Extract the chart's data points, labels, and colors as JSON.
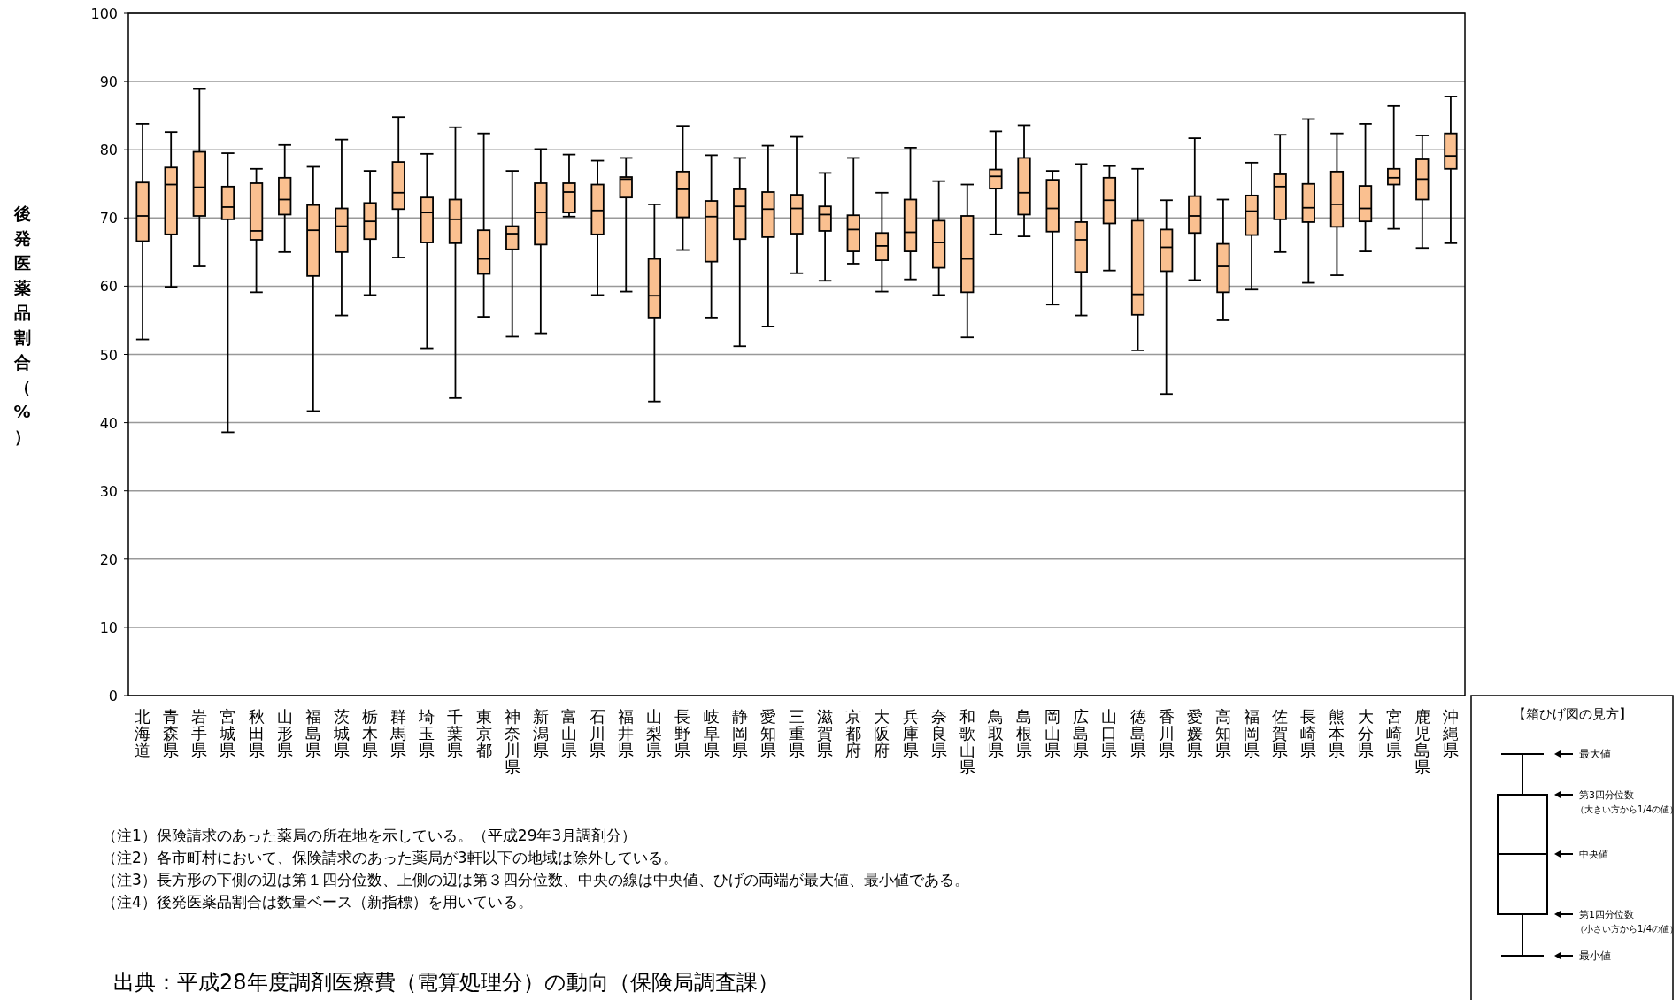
{
  "chart_data": [
    {
      "type": "box",
      "ylabel": "後発医薬品割合（%）",
      "categories": [
        "北海道",
        "青森県",
        "岩手県",
        "宮城県",
        "秋田県",
        "山形県",
        "福島県",
        "茨城県",
        "栃木県",
        "群馬県",
        "埼玉県",
        "千葉県",
        "東京都",
        "神奈川県",
        "新潟県",
        "富山県",
        "石川県",
        "福井県",
        "山梨県",
        "長野県",
        "岐阜県",
        "静岡県",
        "愛知県",
        "三重県",
        "滋賀県",
        "京都府",
        "大阪府",
        "兵庫県",
        "奈良県",
        "和歌山県",
        "鳥取県",
        "島根県",
        "岡山県",
        "広島県",
        "山口県",
        "徳島県",
        "香川県",
        "愛媛県",
        "高知県",
        "福岡県",
        "佐賀県",
        "長崎県",
        "熊本県",
        "大分県",
        "宮崎県",
        "鹿児島県",
        "沖縄県"
      ],
      "boxes": [
        {
          "low": 52.2,
          "q1": 66.6,
          "median": 70.3,
          "q3": 75.2,
          "high": 83.8
        },
        {
          "low": 59.9,
          "q1": 67.6,
          "median": 74.9,
          "q3": 77.4,
          "high": 82.6
        },
        {
          "low": 62.9,
          "q1": 70.3,
          "median": 74.5,
          "q3": 79.7,
          "high": 88.9
        },
        {
          "low": 38.6,
          "q1": 69.8,
          "median": 71.6,
          "q3": 74.6,
          "high": 79.5
        },
        {
          "low": 59.1,
          "q1": 66.8,
          "median": 68.1,
          "q3": 75.1,
          "high": 77.2
        },
        {
          "low": 65.0,
          "q1": 70.5,
          "median": 72.7,
          "q3": 75.9,
          "high": 80.7
        },
        {
          "low": 41.7,
          "q1": 61.5,
          "median": 68.2,
          "q3": 71.9,
          "high": 77.5
        },
        {
          "low": 55.7,
          "q1": 65.0,
          "median": 68.8,
          "q3": 71.4,
          "high": 81.5
        },
        {
          "low": 58.7,
          "q1": 66.9,
          "median": 69.5,
          "q3": 72.2,
          "high": 76.9
        },
        {
          "low": 64.2,
          "q1": 71.3,
          "median": 73.7,
          "q3": 78.2,
          "high": 84.8
        },
        {
          "low": 50.9,
          "q1": 66.4,
          "median": 70.8,
          "q3": 73.0,
          "high": 79.4
        },
        {
          "low": 43.6,
          "q1": 66.3,
          "median": 69.8,
          "q3": 72.7,
          "high": 83.3
        },
        {
          "low": 55.5,
          "q1": 61.8,
          "median": 64.0,
          "q3": 68.2,
          "high": 82.4
        },
        {
          "low": 52.6,
          "q1": 65.4,
          "median": 67.7,
          "q3": 68.8,
          "high": 76.9
        },
        {
          "low": 53.1,
          "q1": 66.1,
          "median": 70.8,
          "q3": 75.1,
          "high": 80.1
        },
        {
          "low": 70.2,
          "q1": 70.8,
          "median": 73.8,
          "q3": 75.1,
          "high": 79.3
        },
        {
          "low": 58.7,
          "q1": 67.6,
          "median": 71.1,
          "q3": 74.9,
          "high": 78.4
        },
        {
          "low": 59.2,
          "q1": 73.0,
          "median": 75.7,
          "q3": 76.0,
          "high": 78.8
        },
        {
          "low": 43.1,
          "q1": 55.4,
          "median": 58.6,
          "q3": 64.0,
          "high": 72.0
        },
        {
          "low": 65.3,
          "q1": 70.1,
          "median": 74.2,
          "q3": 76.8,
          "high": 83.5
        },
        {
          "low": 55.4,
          "q1": 63.6,
          "median": 70.2,
          "q3": 72.5,
          "high": 79.2
        },
        {
          "low": 51.2,
          "q1": 66.9,
          "median": 71.7,
          "q3": 74.2,
          "high": 78.8
        },
        {
          "low": 54.1,
          "q1": 67.2,
          "median": 71.3,
          "q3": 73.8,
          "high": 80.6
        },
        {
          "low": 61.9,
          "q1": 67.7,
          "median": 71.4,
          "q3": 73.4,
          "high": 81.9
        },
        {
          "low": 60.8,
          "q1": 68.1,
          "median": 70.5,
          "q3": 71.7,
          "high": 76.6
        },
        {
          "low": 63.3,
          "q1": 65.1,
          "median": 68.3,
          "q3": 70.4,
          "high": 78.8
        },
        {
          "low": 59.2,
          "q1": 63.8,
          "median": 65.9,
          "q3": 67.8,
          "high": 73.7
        },
        {
          "low": 61.0,
          "q1": 65.1,
          "median": 67.9,
          "q3": 72.7,
          "high": 80.3
        },
        {
          "low": 58.7,
          "q1": 62.7,
          "median": 66.4,
          "q3": 69.6,
          "high": 75.4
        },
        {
          "low": 52.5,
          "q1": 59.1,
          "median": 64.0,
          "q3": 70.3,
          "high": 74.9
        },
        {
          "low": 67.6,
          "q1": 74.3,
          "median": 76.1,
          "q3": 77.1,
          "high": 82.7
        },
        {
          "low": 67.3,
          "q1": 70.5,
          "median": 73.7,
          "q3": 78.8,
          "high": 83.6
        },
        {
          "low": 57.3,
          "q1": 68.0,
          "median": 71.4,
          "q3": 75.6,
          "high": 76.9
        },
        {
          "low": 55.7,
          "q1": 62.1,
          "median": 66.8,
          "q3": 69.4,
          "high": 77.9
        },
        {
          "low": 62.3,
          "q1": 69.2,
          "median": 72.6,
          "q3": 75.9,
          "high": 77.6
        },
        {
          "low": 50.6,
          "q1": 55.8,
          "median": 58.8,
          "q3": 69.6,
          "high": 77.2
        },
        {
          "low": 44.2,
          "q1": 62.2,
          "median": 65.7,
          "q3": 68.3,
          "high": 72.6
        },
        {
          "low": 60.9,
          "q1": 67.8,
          "median": 70.3,
          "q3": 73.2,
          "high": 81.7
        },
        {
          "low": 55.0,
          "q1": 59.1,
          "median": 62.9,
          "q3": 66.2,
          "high": 72.7
        },
        {
          "low": 59.5,
          "q1": 67.5,
          "median": 71.0,
          "q3": 73.3,
          "high": 78.1
        },
        {
          "low": 65.0,
          "q1": 69.8,
          "median": 74.6,
          "q3": 76.4,
          "high": 82.2
        },
        {
          "low": 60.5,
          "q1": 69.4,
          "median": 71.5,
          "q3": 75.0,
          "high": 84.5
        },
        {
          "low": 61.6,
          "q1": 68.7,
          "median": 72.0,
          "q3": 76.8,
          "high": 82.4
        },
        {
          "low": 65.1,
          "q1": 69.5,
          "median": 71.4,
          "q3": 74.7,
          "high": 83.8
        },
        {
          "low": 68.4,
          "q1": 74.9,
          "median": 75.9,
          "q3": 77.2,
          "high": 86.4
        },
        {
          "low": 65.6,
          "q1": 72.7,
          "median": 75.7,
          "q3": 78.6,
          "high": 82.1
        },
        {
          "low": 66.3,
          "q1": 77.2,
          "median": 79.1,
          "q3": 82.4,
          "high": 87.8
        }
      ],
      "color": "#fac090",
      "ylim": [
        0,
        100
      ],
      "yticks": [
        0,
        10,
        20,
        30,
        40,
        50,
        60,
        70,
        80,
        90,
        100
      ],
      "grid": "y",
      "annotations": [
        "（注1）保険請求のあった薬局の所在地を示している。（平成29年3月調剤分）",
        "（注2）各市町村において、保険請求のあった薬局が3軒以下の地域は除外している。",
        "（注3）長方形の下側の辺は第１四分位数、上側の辺は第３四分位数、中央の線は中央値、ひげの両端が最大値、最小値である。",
        "（注4）後発医薬品割合は数量ベース（新指標）を用いている。",
        "出典：平成28年度調剤医療費（電算処理分）の動向（保険局調査課）"
      ]
    },
    {
      "type": "other",
      "title": "【箱ひげ図の見方】",
      "annotations": [
        "最大値",
        "第3四分位数",
        "（大きい方から1/4の値）",
        "中央値",
        "第1四分位数",
        "（小さい方から1/4の値）",
        "最小値"
      ]
    }
  ]
}
